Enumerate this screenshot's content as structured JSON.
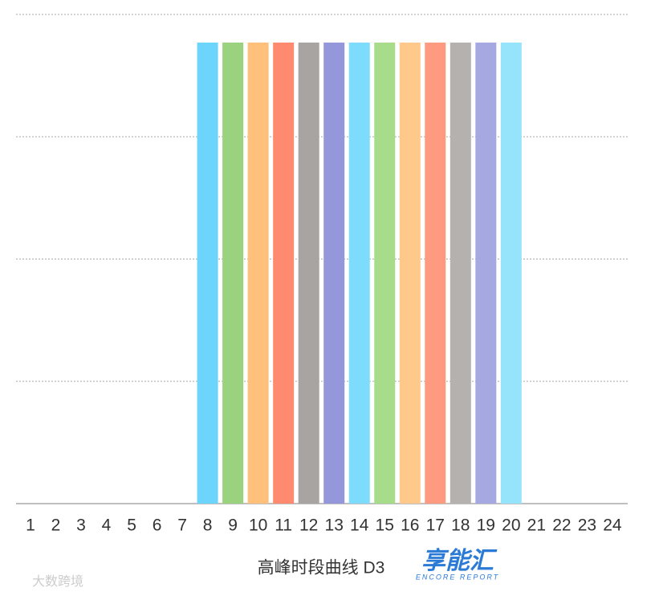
{
  "chart_data": {
    "type": "bar",
    "title": "高峰时段曲线 D3",
    "categories": [
      "1",
      "2",
      "3",
      "4",
      "5",
      "6",
      "7",
      "8",
      "9",
      "10",
      "11",
      "12",
      "13",
      "14",
      "15",
      "16",
      "17",
      "18",
      "19",
      "20",
      "21",
      "22",
      "23",
      "24"
    ],
    "values": [
      0,
      0,
      0,
      0,
      0,
      0,
      0,
      3.77,
      3.77,
      3.77,
      3.77,
      3.77,
      3.77,
      3.77,
      3.77,
      3.77,
      3.77,
      3.77,
      3.77,
      3.77,
      0,
      0,
      0,
      0
    ],
    "colors": [
      null,
      null,
      null,
      null,
      null,
      null,
      null,
      "#6dd5fb",
      "#9ad27d",
      "#fec07a",
      "#fe8b6f",
      "#a8a4a1",
      "#9497d9",
      "#7ddcfb",
      "#a7dc8b",
      "#fec98a",
      "#fe9a80",
      "#b4b1ae",
      "#a6a8e2",
      "#95e4fc",
      null,
      null,
      null,
      null
    ],
    "ylim": [
      0,
      4
    ],
    "yticks": [
      0,
      1,
      2,
      3,
      4
    ],
    "grid": true
  },
  "logo": {
    "text": "享能汇",
    "subtext": "ENCORE REPORT"
  },
  "watermark": "大数跨境"
}
